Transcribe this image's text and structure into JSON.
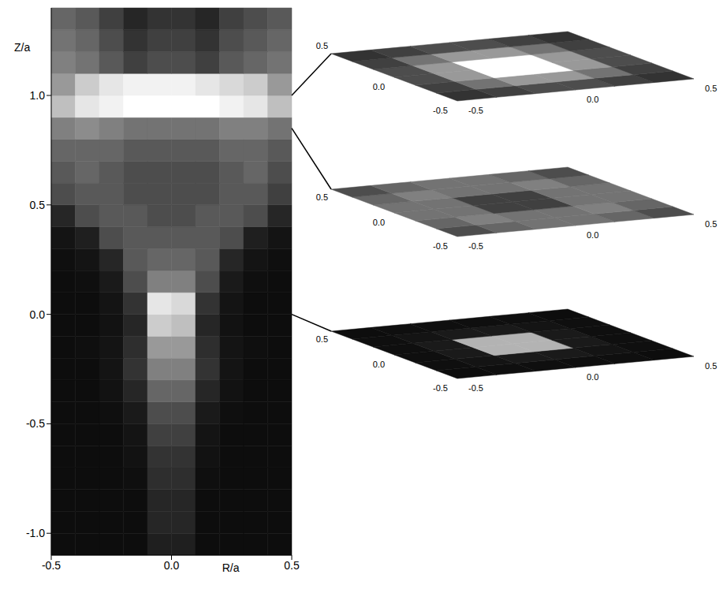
{
  "chart_data": {
    "type": "heatmap",
    "xlabel": "R/a",
    "ylabel": "Z/a",
    "xlim": [
      -0.5,
      0.5
    ],
    "ylim": [
      -1.1,
      1.4
    ],
    "xticks": [
      -0.5,
      {
        "value": 0,
        "label": "0.0"
      },
      0.5
    ],
    "yticks": [
      {
        "value": -1,
        "label": "-1.0"
      },
      -0.5,
      {
        "value": 0,
        "label": "0.0"
      },
      0.5,
      {
        "value": 1,
        "label": "1.0"
      }
    ],
    "r_bins": [
      -0.5,
      -0.4,
      -0.3,
      -0.2,
      -0.1,
      0,
      0.1,
      0.2,
      0.3,
      0.4,
      0.5
    ],
    "z_bins": [
      -1.1,
      -1,
      -0.9,
      -0.8,
      -0.7,
      -0.6,
      -0.5,
      -0.4,
      -0.3,
      -0.2,
      -0.1,
      0,
      0.1,
      0.2,
      0.3,
      0.4,
      0.5,
      0.6,
      0.7,
      0.8,
      0.9,
      1,
      1.1,
      1.2,
      1.3,
      1.4
    ],
    "cells": [
      [
        0.05,
        0.05,
        0.05,
        0.05,
        0.12,
        0.12,
        0.05,
        0.05,
        0.05,
        0.05
      ],
      [
        0.05,
        0.05,
        0.05,
        0.05,
        0.15,
        0.15,
        0.05,
        0.05,
        0.05,
        0.05
      ],
      [
        0.05,
        0.05,
        0.05,
        0.05,
        0.15,
        0.15,
        0.05,
        0.05,
        0.05,
        0.05
      ],
      [
        0.05,
        0.05,
        0.05,
        0.06,
        0.18,
        0.18,
        0.06,
        0.05,
        0.05,
        0.05
      ],
      [
        0.05,
        0.05,
        0.05,
        0.07,
        0.2,
        0.2,
        0.07,
        0.05,
        0.05,
        0.05
      ],
      [
        0.05,
        0.05,
        0.05,
        0.08,
        0.25,
        0.25,
        0.08,
        0.05,
        0.05,
        0.05
      ],
      [
        0.05,
        0.05,
        0.06,
        0.1,
        0.3,
        0.3,
        0.1,
        0.06,
        0.05,
        0.05
      ],
      [
        0.05,
        0.05,
        0.07,
        0.15,
        0.4,
        0.4,
        0.15,
        0.07,
        0.05,
        0.05
      ],
      [
        0.05,
        0.05,
        0.08,
        0.2,
        0.5,
        0.5,
        0.2,
        0.08,
        0.05,
        0.05
      ],
      [
        0.05,
        0.06,
        0.08,
        0.18,
        0.6,
        0.6,
        0.18,
        0.08,
        0.06,
        0.05
      ],
      [
        0.05,
        0.05,
        0.07,
        0.15,
        0.8,
        0.75,
        0.15,
        0.07,
        0.05,
        0.05
      ],
      [
        0.05,
        0.05,
        0.08,
        0.2,
        0.9,
        0.85,
        0.2,
        0.08,
        0.05,
        0.05
      ],
      [
        0.05,
        0.06,
        0.1,
        0.3,
        0.5,
        0.5,
        0.3,
        0.1,
        0.06,
        0.05
      ],
      [
        0.06,
        0.08,
        0.15,
        0.35,
        0.4,
        0.4,
        0.35,
        0.15,
        0.08,
        0.06
      ],
      [
        0.08,
        0.12,
        0.3,
        0.35,
        0.35,
        0.35,
        0.35,
        0.3,
        0.12,
        0.08
      ],
      [
        0.15,
        0.3,
        0.35,
        0.35,
        0.3,
        0.3,
        0.35,
        0.35,
        0.3,
        0.15
      ],
      [
        0.3,
        0.35,
        0.35,
        0.3,
        0.3,
        0.3,
        0.3,
        0.35,
        0.35,
        0.25
      ],
      [
        0.35,
        0.4,
        0.35,
        0.3,
        0.3,
        0.3,
        0.3,
        0.35,
        0.4,
        0.3
      ],
      [
        0.4,
        0.4,
        0.4,
        0.35,
        0.35,
        0.35,
        0.35,
        0.4,
        0.4,
        0.35
      ],
      [
        0.5,
        0.55,
        0.5,
        0.45,
        0.45,
        0.45,
        0.45,
        0.5,
        0.5,
        0.45
      ],
      [
        0.75,
        0.9,
        0.95,
        1,
        1,
        1,
        1,
        0.95,
        0.9,
        0.75
      ],
      [
        0.6,
        0.8,
        0.9,
        0.95,
        0.95,
        0.95,
        0.9,
        0.85,
        0.8,
        0.6
      ],
      [
        0.5,
        0.45,
        0.35,
        0.25,
        0.3,
        0.3,
        0.25,
        0.35,
        0.4,
        0.45
      ],
      [
        0.45,
        0.4,
        0.3,
        0.2,
        0.25,
        0.25,
        0.2,
        0.3,
        0.35,
        0.4
      ],
      [
        0.4,
        0.35,
        0.25,
        0.15,
        0.2,
        0.2,
        0.15,
        0.25,
        0.3,
        0.35
      ]
    ],
    "slice_lim": [
      -0.5,
      0.5
    ],
    "slice_ticks": [
      -0.5,
      {
        "value": 0,
        "label": "0.0"
      },
      0.5
    ],
    "slices": [
      {
        "z": 1.0,
        "cells": [
          [
            0.2,
            0.25,
            0.3,
            0.3,
            0.25,
            0.2
          ],
          [
            0.25,
            0.45,
            0.6,
            0.6,
            0.45,
            0.25
          ],
          [
            0.3,
            0.6,
            1,
            1,
            0.6,
            0.3
          ],
          [
            0.3,
            0.6,
            1,
            1,
            0.6,
            0.3
          ],
          [
            0.25,
            0.45,
            0.6,
            0.6,
            0.45,
            0.25
          ],
          [
            0.2,
            0.25,
            0.3,
            0.3,
            0.25,
            0.2
          ]
        ]
      },
      {
        "z": 0.85,
        "cells": [
          [
            0.3,
            0.4,
            0.45,
            0.45,
            0.4,
            0.3
          ],
          [
            0.4,
            0.5,
            0.45,
            0.45,
            0.5,
            0.4
          ],
          [
            0.45,
            0.45,
            0.25,
            0.25,
            0.45,
            0.45
          ],
          [
            0.45,
            0.45,
            0.25,
            0.25,
            0.45,
            0.45
          ],
          [
            0.4,
            0.5,
            0.45,
            0.45,
            0.5,
            0.4
          ],
          [
            0.3,
            0.4,
            0.45,
            0.45,
            0.4,
            0.3
          ]
        ]
      },
      {
        "z": 0.0,
        "cells": [
          [
            0.05,
            0.06,
            0.06,
            0.06,
            0.06,
            0.05
          ],
          [
            0.06,
            0.08,
            0.1,
            0.1,
            0.08,
            0.06
          ],
          [
            0.06,
            0.1,
            0.7,
            0.7,
            0.1,
            0.06
          ],
          [
            0.06,
            0.1,
            0.7,
            0.7,
            0.1,
            0.06
          ],
          [
            0.06,
            0.08,
            0.1,
            0.1,
            0.08,
            0.06
          ],
          [
            0.05,
            0.06,
            0.06,
            0.06,
            0.06,
            0.05
          ]
        ]
      }
    ]
  }
}
